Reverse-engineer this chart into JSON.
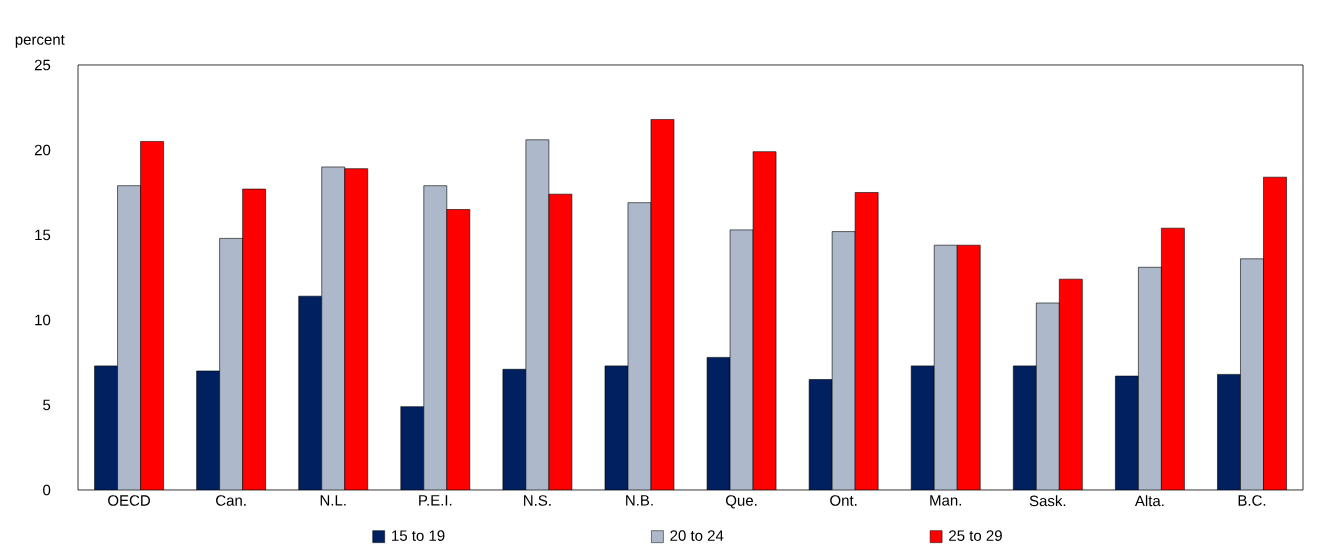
{
  "chart_data": {
    "type": "bar",
    "ylabel": "percent",
    "categories": [
      "OECD",
      "Can.",
      "N.L.",
      "P.E.I.",
      "N.S.",
      "N.B.",
      "Que.",
      "Ont.",
      "Man.",
      "Sask.",
      "Alta.",
      "B.C."
    ],
    "series": [
      {
        "name": "15 to 19",
        "color": "#002060",
        "values": [
          7.3,
          7.0,
          11.4,
          4.9,
          7.1,
          7.3,
          7.8,
          6.5,
          7.3,
          7.3,
          6.7,
          6.8
        ]
      },
      {
        "name": "20 to 24",
        "color": "#adb9ca",
        "values": [
          17.9,
          14.8,
          19.0,
          17.9,
          20.6,
          16.9,
          15.3,
          15.2,
          14.4,
          11.0,
          13.1,
          13.6
        ]
      },
      {
        "name": "25 to 29",
        "color": "#ff0000",
        "values": [
          20.5,
          17.7,
          18.9,
          16.5,
          17.4,
          21.8,
          19.9,
          17.5,
          14.4,
          12.4,
          15.4,
          18.4
        ]
      }
    ],
    "ylim": [
      0,
      25
    ],
    "yticks": [
      0,
      5,
      10,
      15,
      20,
      25
    ],
    "legend": "bottom"
  }
}
